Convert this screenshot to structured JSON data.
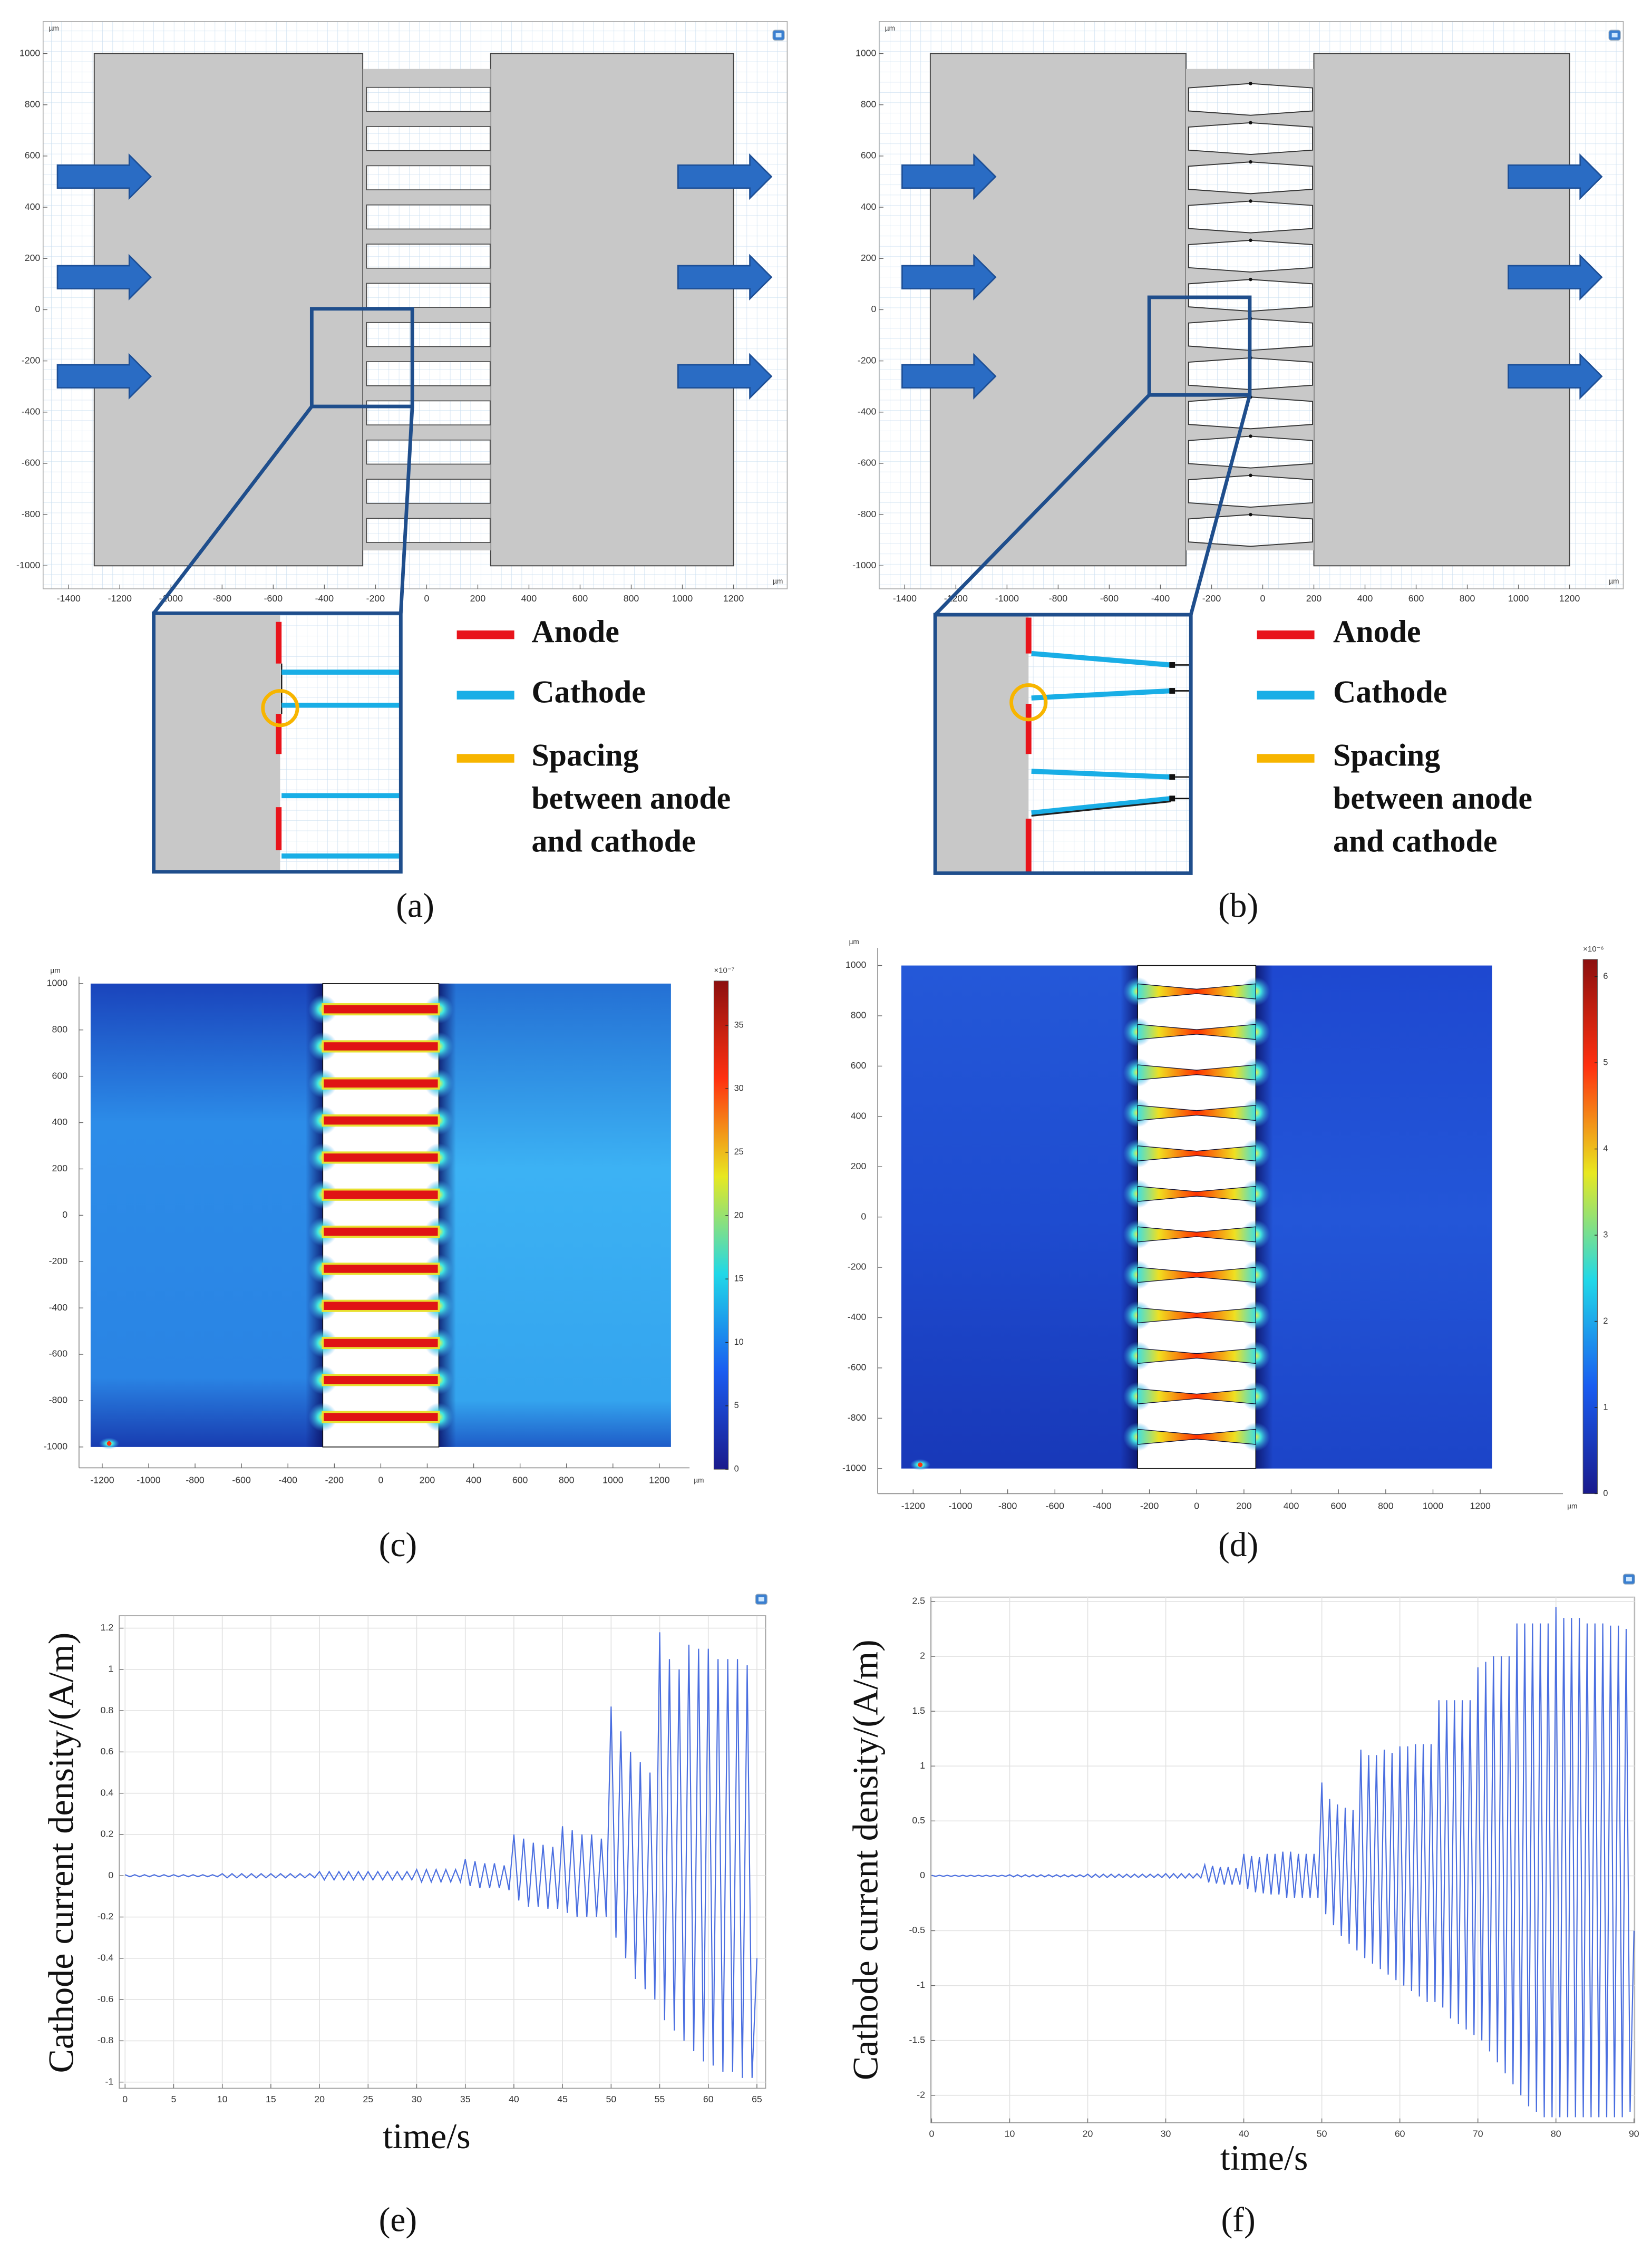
{
  "chart_data": [
    {
      "type": "geometry",
      "label": "(a)",
      "unit": "µm",
      "xlim": [
        -1500,
        1410
      ],
      "ylim": [
        -1090,
        1125
      ],
      "xticks": [
        -1400,
        -1200,
        -1000,
        -800,
        -600,
        -400,
        -200,
        0,
        200,
        400,
        600,
        800,
        1000,
        1200
      ],
      "yticks": [
        -1000,
        -800,
        -600,
        -400,
        -200,
        0,
        200,
        400,
        600,
        800,
        1000
      ],
      "legend": [
        {
          "name": [
            "Anode"
          ],
          "color": "#e8141c"
        },
        {
          "name": [
            "Cathode"
          ],
          "color": "#19aee6"
        },
        {
          "name": [
            "Spacing",
            "between anode",
            "and cathode"
          ],
          "color": "#f7b500"
        }
      ]
    },
    {
      "type": "geometry",
      "label": "(b)",
      "unit": "µm",
      "xlim": [
        -1500,
        1410
      ],
      "ylim": [
        -1090,
        1125
      ],
      "xticks": [
        -1400,
        -1200,
        -1000,
        -800,
        -600,
        -400,
        -200,
        0,
        200,
        400,
        600,
        800,
        1000,
        1200
      ],
      "yticks": [
        -1000,
        -800,
        -600,
        -400,
        -200,
        0,
        200,
        400,
        600,
        800,
        1000
      ],
      "legend": [
        {
          "name": [
            "Anode"
          ],
          "color": "#e8141c"
        },
        {
          "name": [
            "Cathode"
          ],
          "color": "#19aee6"
        },
        {
          "name": [
            "Spacing",
            "between anode",
            "and cathode"
          ],
          "color": "#f7b500"
        }
      ]
    },
    {
      "type": "heatmap",
      "label": "(c)",
      "unit": "µm",
      "xlim": [
        -1300,
        1330
      ],
      "ylim": [
        -1090,
        1030
      ],
      "xticks": [
        -1200,
        -1000,
        -800,
        -600,
        -400,
        -200,
        0,
        200,
        400,
        600,
        800,
        1000,
        1200
      ],
      "yticks": [
        -1000,
        -800,
        -600,
        -400,
        -200,
        0,
        200,
        400,
        600,
        800,
        1000
      ],
      "clim": [
        0,
        38.5
      ],
      "cticks": [
        0,
        5,
        10,
        15,
        20,
        25,
        30,
        35
      ],
      "colorbar_label": "×10⁻⁷",
      "colormap": [
        "#1a1a8c",
        "#1a5cf0",
        "#20d8e8",
        "#e8e820",
        "#ff3010",
        "#8c1010"
      ]
    },
    {
      "type": "heatmap",
      "label": "(d)",
      "unit": "µm",
      "xlim": [
        -1350,
        1550
      ],
      "ylim": [
        -1100,
        1070
      ],
      "xticks": [
        -1200,
        -1000,
        -800,
        -600,
        -400,
        -200,
        0,
        200,
        400,
        600,
        800,
        1000,
        1200
      ],
      "yticks": [
        -1000,
        -800,
        -600,
        -400,
        -200,
        0,
        200,
        400,
        600,
        800,
        1000
      ],
      "clim": [
        0,
        6.2
      ],
      "cticks": [
        0,
        1,
        2,
        3,
        4,
        5,
        6
      ],
      "colorbar_label": "×10⁻⁶",
      "colormap": [
        "#1a1a8c",
        "#1a5cf0",
        "#20d8e8",
        "#e8e820",
        "#ff3010",
        "#8c1010"
      ]
    },
    {
      "type": "line",
      "label": "(e)",
      "ylabel": "Cathode current density/(A/m)",
      "xlabel": "time/s",
      "xlim": [
        -0.6,
        65.9
      ],
      "ylim": [
        -1.03,
        1.26
      ],
      "xticks": [
        0,
        5,
        10,
        15,
        20,
        25,
        30,
        35,
        40,
        45,
        50,
        55,
        60,
        65
      ],
      "yticks": [
        -1,
        -0.8,
        -0.6,
        -0.4,
        -0.2,
        0,
        0.2,
        0.4,
        0.6,
        0.8,
        1,
        1.2
      ],
      "grid": true,
      "color": "#4a6ee0",
      "x": [
        0,
        0.5,
        1,
        1.5,
        2,
        2.5,
        3,
        3.5,
        4,
        4.5,
        5,
        5.5,
        6,
        6.5,
        7,
        7.5,
        8,
        8.5,
        9,
        9.5,
        10,
        10.5,
        11,
        11.5,
        12,
        12.5,
        13,
        13.5,
        14,
        14.5,
        15,
        15.5,
        16,
        16.5,
        17,
        17.5,
        18,
        18.5,
        19,
        19.5,
        20,
        20.5,
        21,
        21.5,
        22,
        22.5,
        23,
        23.5,
        24,
        24.5,
        25,
        25.5,
        26,
        26.5,
        27,
        27.5,
        28,
        28.5,
        29,
        29.5,
        30,
        30.5,
        31,
        31.5,
        32,
        32.5,
        33,
        33.5,
        34,
        34.5,
        35,
        35.5,
        36,
        36.5,
        37,
        37.5,
        38,
        38.5,
        39,
        39.5,
        40,
        40.5,
        41,
        41.5,
        42,
        42.5,
        43,
        43.5,
        44,
        44.5,
        45,
        45.5,
        46,
        46.5,
        47,
        47.5,
        48,
        48.5,
        49,
        49.5,
        50,
        50.5,
        51,
        51.5,
        52,
        52.5,
        53,
        53.5,
        54,
        54.5,
        55,
        55.5,
        56,
        56.5,
        57,
        57.5,
        58,
        58.5,
        59,
        59.5,
        60,
        60.5,
        61,
        61.5,
        62,
        62.5,
        63,
        63.5,
        64,
        64.5,
        65
      ],
      "values": [
        0.005,
        -0.005,
        0.005,
        -0.005,
        0.005,
        -0.005,
        0.005,
        -0.005,
        0.005,
        -0.005,
        0.005,
        -0.005,
        0.005,
        -0.005,
        0.005,
        -0.005,
        0.005,
        -0.005,
        0.005,
        -0.005,
        0.01,
        -0.01,
        0.01,
        -0.01,
        0.01,
        -0.01,
        0.01,
        -0.01,
        0.01,
        -0.01,
        0.01,
        -0.01,
        0.01,
        -0.01,
        0.01,
        -0.01,
        0.01,
        -0.01,
        0.01,
        -0.01,
        0.02,
        -0.02,
        0.02,
        -0.02,
        0.02,
        -0.02,
        0.02,
        -0.02,
        0.02,
        -0.02,
        0.02,
        -0.02,
        0.02,
        -0.02,
        0.02,
        -0.02,
        0.02,
        -0.02,
        0.02,
        -0.02,
        0.03,
        -0.03,
        0.03,
        -0.03,
        0.03,
        -0.03,
        0.03,
        -0.03,
        0.03,
        -0.03,
        0.08,
        -0.05,
        0.07,
        -0.06,
        0.06,
        -0.06,
        0.06,
        -0.06,
        0.05,
        -0.07,
        0.2,
        -0.12,
        0.18,
        -0.15,
        0.16,
        -0.15,
        0.15,
        -0.16,
        0.14,
        -0.16,
        0.24,
        -0.18,
        0.22,
        -0.2,
        0.2,
        -0.2,
        0.2,
        -0.2,
        0.18,
        -0.2,
        0.82,
        -0.3,
        0.7,
        -0.4,
        0.6,
        -0.5,
        0.55,
        -0.55,
        0.5,
        -0.6,
        1.18,
        -0.7,
        1.05,
        -0.75,
        1,
        -0.8,
        1.12,
        -0.85,
        1.1,
        -0.9,
        1.1,
        -0.92,
        1.05,
        -0.95,
        1.05,
        -0.95,
        1.05,
        -0.98,
        1.02,
        -0.98,
        -0.4
      ]
    },
    {
      "type": "line",
      "label": "(f)",
      "ylabel": "Cathode current density/(A/m)",
      "xlabel": "time/s",
      "xlim": [
        -0.1,
        90.1
      ],
      "ylim": [
        -2.25,
        2.54
      ],
      "xticks": [
        0,
        10,
        20,
        30,
        40,
        50,
        60,
        70,
        80,
        90
      ],
      "yticks": [
        -2,
        -1.5,
        -1,
        -0.5,
        0,
        0.5,
        1,
        1.5,
        2,
        2.5
      ],
      "grid": true,
      "color": "#4a6ee0",
      "x": [
        0,
        0.5,
        1,
        1.5,
        2,
        2.5,
        3,
        3.5,
        4,
        4.5,
        5,
        5.5,
        6,
        6.5,
        7,
        7.5,
        8,
        8.5,
        9,
        9.5,
        10,
        10.5,
        11,
        11.5,
        12,
        12.5,
        13,
        13.5,
        14,
        14.5,
        15,
        15.5,
        16,
        16.5,
        17,
        17.5,
        18,
        18.5,
        19,
        19.5,
        20,
        20.5,
        21,
        21.5,
        22,
        22.5,
        23,
        23.5,
        24,
        24.5,
        25,
        25.5,
        26,
        26.5,
        27,
        27.5,
        28,
        28.5,
        29,
        29.5,
        30,
        30.5,
        31,
        31.5,
        32,
        32.5,
        33,
        33.5,
        34,
        34.5,
        35,
        35.5,
        36,
        36.5,
        37,
        37.5,
        38,
        38.5,
        39,
        39.5,
        40,
        40.5,
        41,
        41.5,
        42,
        42.5,
        43,
        43.5,
        44,
        44.5,
        45,
        45.5,
        46,
        46.5,
        47,
        47.5,
        48,
        48.5,
        49,
        49.5,
        50,
        50.5,
        51,
        51.5,
        52,
        52.5,
        53,
        53.5,
        54,
        54.5,
        55,
        55.5,
        56,
        56.5,
        57,
        57.5,
        58,
        58.5,
        59,
        59.5,
        60,
        60.5,
        61,
        61.5,
        62,
        62.5,
        63,
        63.5,
        64,
        64.5,
        65,
        65.5,
        66,
        66.5,
        67,
        67.5,
        68,
        68.5,
        69,
        69.5,
        70,
        70.5,
        71,
        71.5,
        72,
        72.5,
        73,
        73.5,
        74,
        74.5,
        75,
        75.5,
        76,
        76.5,
        77,
        77.5,
        78,
        78.5,
        79,
        79.5,
        80,
        80.5,
        81,
        81.5,
        82,
        82.5,
        83,
        83.5,
        84,
        84.5,
        85,
        85.5,
        86,
        86.5,
        87,
        87.5,
        88,
        88.5,
        89,
        89.5,
        90
      ],
      "values": [
        0.005,
        -0.005,
        0.005,
        -0.005,
        0.005,
        -0.005,
        0.005,
        -0.005,
        0.005,
        -0.005,
        0.005,
        -0.005,
        0.005,
        -0.005,
        0.005,
        -0.005,
        0.005,
        -0.005,
        0.005,
        -0.005,
        0.01,
        -0.01,
        0.01,
        -0.01,
        0.01,
        -0.01,
        0.01,
        -0.01,
        0.01,
        -0.01,
        0.01,
        -0.01,
        0.01,
        -0.01,
        0.01,
        -0.01,
        0.01,
        -0.01,
        0.01,
        -0.01,
        0.015,
        -0.015,
        0.015,
        -0.015,
        0.015,
        -0.015,
        0.015,
        -0.015,
        0.015,
        -0.015,
        0.015,
        -0.015,
        0.015,
        -0.015,
        0.015,
        -0.015,
        0.015,
        -0.015,
        0.015,
        -0.015,
        0.02,
        -0.02,
        0.02,
        -0.02,
        0.02,
        -0.02,
        0.02,
        -0.02,
        0.02,
        -0.02,
        0.1,
        -0.06,
        0.09,
        -0.07,
        0.08,
        -0.08,
        0.08,
        -0.08,
        0.07,
        -0.08,
        0.2,
        -0.12,
        0.18,
        -0.15,
        0.17,
        -0.16,
        0.2,
        -0.17,
        0.2,
        -0.17,
        0.22,
        -0.2,
        0.22,
        -0.2,
        0.2,
        -0.2,
        0.2,
        -0.2,
        0.2,
        -0.2,
        0.85,
        -0.35,
        0.7,
        -0.45,
        0.65,
        -0.55,
        0.62,
        -0.62,
        0.6,
        -0.68,
        1.15,
        -0.75,
        1.1,
        -0.8,
        1.1,
        -0.85,
        1.15,
        -0.9,
        1.12,
        -0.95,
        1.18,
        -1,
        1.18,
        -1.05,
        1.2,
        -1.1,
        1.2,
        -1.15,
        1.2,
        -1.15,
        1.6,
        -1.2,
        1.6,
        -1.3,
        1.6,
        -1.35,
        1.6,
        -1.4,
        1.6,
        -1.45,
        1.9,
        -1.5,
        1.95,
        -1.6,
        2,
        -1.7,
        2,
        -1.8,
        2,
        -1.9,
        2.3,
        -2,
        2.3,
        -2.1,
        2.3,
        -2.15,
        2.3,
        -2.2,
        2.3,
        -2.2,
        2.45,
        -2.2,
        2.35,
        -2.2,
        2.35,
        -2.2,
        2.35,
        -2.2,
        2.3,
        -2.2,
        2.3,
        -2.2,
        2.3,
        -2.2,
        2.28,
        -2.2,
        2.28,
        -2.2,
        2.25,
        -2.15,
        -0.5
      ]
    }
  ]
}
